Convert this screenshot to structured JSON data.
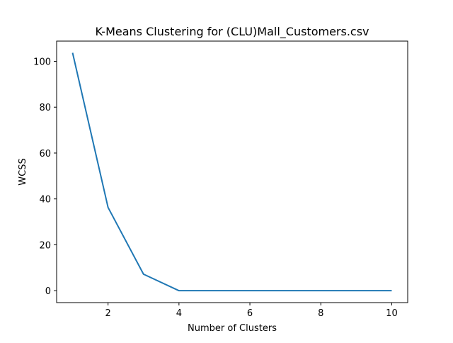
{
  "chart_data": {
    "type": "line",
    "title": "K-Means Clustering for (CLU)Mall_Customers.csv",
    "xlabel": "Number of Clusters",
    "ylabel": "WCSS",
    "xlim": [
      0.55,
      10.45
    ],
    "ylim": [
      -5.2,
      108.8
    ],
    "xticks": [
      2,
      4,
      6,
      8,
      10
    ],
    "yticks": [
      0,
      20,
      40,
      60,
      80,
      100
    ],
    "grid": false,
    "series": [
      {
        "color": "#1f77b4",
        "x": [
          1,
          2,
          3,
          4,
          5,
          6,
          7,
          8,
          9,
          10
        ],
        "y": [
          103.7,
          36.3,
          7.2,
          0,
          0,
          0,
          0,
          0,
          0,
          0
        ]
      }
    ]
  }
}
